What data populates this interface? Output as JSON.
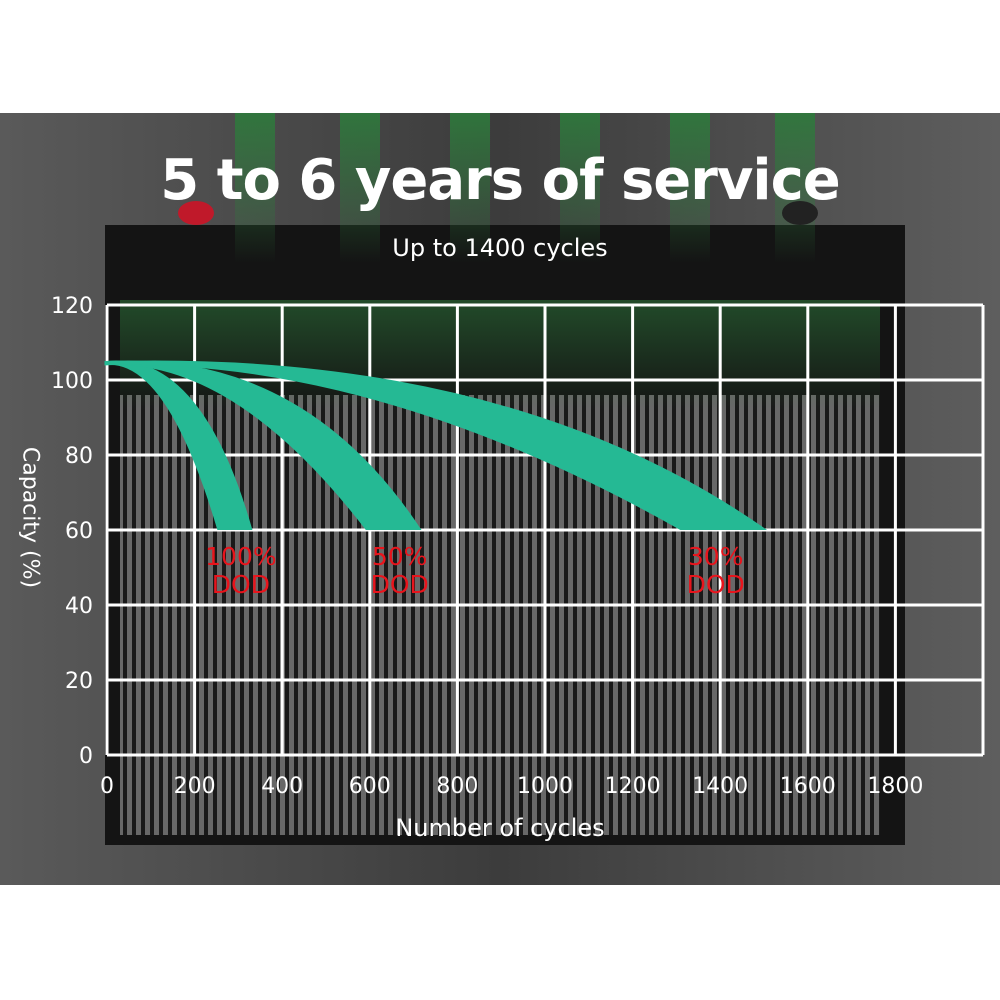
{
  "title": "5 to 6 years of service",
  "subtitle": "Up to 1400 cycles",
  "colors": {
    "band": "#25b994",
    "label": "#e8141c",
    "grid": "#ffffff",
    "background": "#505050"
  },
  "chart_data": {
    "type": "area",
    "xlabel": "Number of cycles",
    "ylabel": "Capacity (%)",
    "xlim": [
      0,
      2000
    ],
    "ylim": [
      0,
      120
    ],
    "x_ticks": [
      "0",
      "200",
      "400",
      "600",
      "800",
      "1000",
      "1200",
      "1400",
      "1600",
      "1800"
    ],
    "y_ticks": [
      "0",
      "20",
      "40",
      "60",
      "80",
      "100",
      "120"
    ],
    "grid": true,
    "series": [
      {
        "name": "100% DOD",
        "label_line1": "100%",
        "label_line2": "DOD",
        "start": [
          40,
          105
        ],
        "end_cycles_range": [
          252,
          332
        ],
        "end_capacity": 60
      },
      {
        "name": "50% DOD",
        "label_line1": "50%",
        "label_line2": "DOD",
        "start": [
          40,
          105
        ],
        "end_cycles_range": [
          591,
          718
        ],
        "end_capacity": 60
      },
      {
        "name": "30% DOD",
        "label_line1": "30%",
        "label_line2": "DOD",
        "start": [
          40,
          105
        ],
        "end_cycles_range": [
          1309,
          1507
        ],
        "end_capacity": 60
      }
    ]
  }
}
